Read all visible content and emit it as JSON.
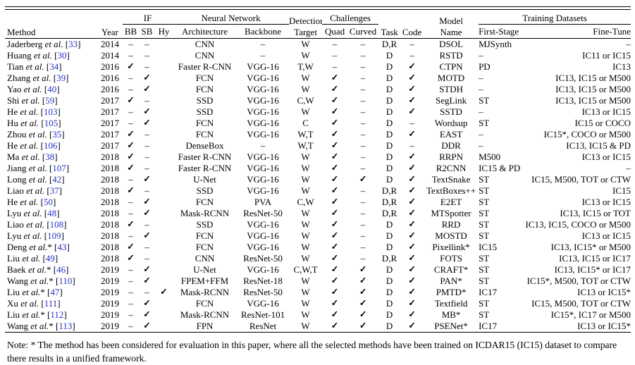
{
  "colors": {
    "citation": "#2533c4",
    "text": "#000000",
    "background": "#ffffff"
  },
  "table": {
    "etal_label": "et al.",
    "header": {
      "method": "Method",
      "year": "Year",
      "if_group": "IF",
      "bb": "BB",
      "sb": "SB",
      "hy": "Hy",
      "nn_group": "Neural Network",
      "architecture": "Architecture",
      "backbone": "Backbone",
      "detection_line1": "Detection",
      "detection_line2": "Target",
      "challenges_group": "Challenges",
      "quad": "Quad",
      "curved": "Curved",
      "task": "Task",
      "code": "Code",
      "model_line1": "Model",
      "model_line2": "Name",
      "training_group": "Training Datasets",
      "first_stage": "First-Stage",
      "fine_tune": "Fine-Tune"
    },
    "symbols": {
      "yes": "✓",
      "no": "–",
      "none": ""
    },
    "rows": [
      {
        "name": "Jaderberg",
        "star": false,
        "cite": "33",
        "year": "2014",
        "bb": "–",
        "sb": "–",
        "hy": "",
        "arch": "CNN",
        "backbone": "–",
        "target": "W",
        "quad": "–",
        "curved": "–",
        "task": "D,R",
        "code": "–",
        "model": "DSOL",
        "first": "MJSynth",
        "fine": "–"
      },
      {
        "name": "Huang",
        "star": false,
        "cite": "30",
        "year": "2014",
        "bb": "–",
        "sb": "–",
        "hy": "",
        "arch": "CNN",
        "backbone": "–",
        "target": "W",
        "quad": "–",
        "curved": "–",
        "task": "D",
        "code": "–",
        "model": "RSTD",
        "first": "–",
        "fine": "IC11 or IC15"
      },
      {
        "name": "Tian",
        "star": false,
        "cite": "34",
        "year": "2016",
        "bb": "✓",
        "sb": "–",
        "hy": "",
        "arch": "Faster R-CNN",
        "backbone": "VGG-16",
        "target": "T,W",
        "quad": "–",
        "curved": "–",
        "task": "D",
        "code": "✓",
        "model": "CTPN",
        "first": "PD",
        "fine": "IC13"
      },
      {
        "name": "Zhang",
        "star": false,
        "cite": "39",
        "year": "2016",
        "bb": "–",
        "sb": "✓",
        "hy": "",
        "arch": "FCN",
        "backbone": "VGG-16",
        "target": "W",
        "quad": "✓",
        "curved": "–",
        "task": "D",
        "code": "✓",
        "model": "MOTD",
        "first": "–",
        "fine": "IC13, IC15 or M500"
      },
      {
        "name": "Yao",
        "star": false,
        "cite": "40",
        "year": "2016",
        "bb": "–",
        "sb": "✓",
        "hy": "",
        "arch": "FCN",
        "backbone": "VGG-16",
        "target": "W",
        "quad": "✓",
        "curved": "–",
        "task": "D",
        "code": "✓",
        "model": "STDH",
        "first": "–",
        "fine": "IC13, IC15 or M500"
      },
      {
        "name": "Shi",
        "star": false,
        "cite": "59",
        "year": "2017",
        "bb": "✓",
        "sb": "–",
        "hy": "",
        "arch": "SSD",
        "backbone": "VGG-16",
        "target": "C,W",
        "quad": "✓",
        "curved": "–",
        "task": "D",
        "code": "✓",
        "model": "SegLink",
        "first": "ST",
        "fine": "IC13, IC15 or M500"
      },
      {
        "name": "He",
        "star": false,
        "cite": "103",
        "year": "2017",
        "bb": "–",
        "sb": "✓",
        "hy": "",
        "arch": "SSD",
        "backbone": "VGG-16",
        "target": "W",
        "quad": "✓",
        "curved": "–",
        "task": "D",
        "code": "✓",
        "model": "SSTD",
        "first": "–",
        "fine": "IC13 or IC15"
      },
      {
        "name": "Hu",
        "star": false,
        "cite": "105",
        "year": "2017",
        "bb": "–",
        "sb": "✓",
        "hy": "",
        "arch": "FCN",
        "backbone": "VGG-16",
        "target": "C",
        "quad": "✓",
        "curved": "–",
        "task": "D",
        "code": "–",
        "model": "Wordsup",
        "first": "ST",
        "fine": "IC15 or COCO"
      },
      {
        "name": "Zhou",
        "star": false,
        "cite": "35",
        "year": "2017",
        "bb": "✓",
        "sb": "–",
        "hy": "",
        "arch": "FCN",
        "backbone": "VGG-16",
        "target": "W,T",
        "quad": "✓",
        "curved": "–",
        "task": "D",
        "code": "✓",
        "model": "EAST",
        "first": "–",
        "fine": "IC15*, COCO or M500"
      },
      {
        "name": "He",
        "star": false,
        "cite": "106",
        "year": "2017",
        "bb": "✓",
        "sb": "–",
        "hy": "",
        "arch": "DenseBox",
        "backbone": "–",
        "target": "W,T",
        "quad": "✓",
        "curved": "–",
        "task": "D",
        "code": "–",
        "model": "DDR",
        "first": "–",
        "fine": "IC13, IC15 & PD"
      },
      {
        "name": "Ma",
        "star": false,
        "cite": "38",
        "year": "2018",
        "bb": "✓",
        "sb": "–",
        "hy": "",
        "arch": "Faster R-CNN",
        "backbone": "VGG-16",
        "target": "W",
        "quad": "✓",
        "curved": "–",
        "task": "D",
        "code": "✓",
        "model": "RRPN",
        "first": "M500",
        "fine": "IC13 or IC15"
      },
      {
        "name": "Jiang",
        "star": false,
        "cite": "107",
        "year": "2018",
        "bb": "✓",
        "sb": "–",
        "hy": "",
        "arch": "Faster R-CNN",
        "backbone": "VGG-16",
        "target": "W",
        "quad": "✓",
        "curved": "–",
        "task": "D",
        "code": "✓",
        "model": "R2CNN",
        "first": "IC15 & PD",
        "fine": "–"
      },
      {
        "name": "Long",
        "star": false,
        "cite": "42",
        "year": "2018",
        "bb": "–",
        "sb": "✓",
        "hy": "",
        "arch": "U-Net",
        "backbone": "VGG-16",
        "target": "W",
        "quad": "✓",
        "curved": "✓",
        "task": "D",
        "code": "✓",
        "model": "TextSnake",
        "first": "ST",
        "fine": "IC15, M500, TOT or CTW"
      },
      {
        "name": "Liao",
        "star": false,
        "cite": "37",
        "year": "2018",
        "bb": "✓",
        "sb": "–",
        "hy": "",
        "arch": "SSD",
        "backbone": "VGG-16",
        "target": "W",
        "quad": "✓",
        "curved": "–",
        "task": "D,R",
        "code": "✓",
        "model": "TextBoxes++",
        "first": "ST",
        "fine": "IC15"
      },
      {
        "name": "He",
        "star": false,
        "cite": "50",
        "year": "2018",
        "bb": "–",
        "sb": "✓",
        "hy": "",
        "arch": "FCN",
        "backbone": "PVA",
        "target": "C,W",
        "quad": "✓",
        "curved": "–",
        "task": "D,R",
        "code": "✓",
        "model": "E2ET",
        "first": "ST",
        "fine": "IC13 or IC15"
      },
      {
        "name": "Lyu",
        "star": false,
        "cite": "48",
        "year": "2018",
        "bb": "–",
        "sb": "✓",
        "hy": "",
        "arch": "Mask-RCNN",
        "backbone": "ResNet-50",
        "target": "W",
        "quad": "✓",
        "curved": "–",
        "task": "D,R",
        "code": "✓",
        "model": "MTSpotter",
        "first": "ST",
        "fine": "IC13, IC15 or TOT"
      },
      {
        "name": "Liao",
        "star": false,
        "cite": "108",
        "year": "2018",
        "bb": "✓",
        "sb": "–",
        "hy": "",
        "arch": "SSD",
        "backbone": "VGG-16",
        "target": "W",
        "quad": "✓",
        "curved": "–",
        "task": "D",
        "code": "✓",
        "model": "RRD",
        "first": "ST",
        "fine": "IC13, IC15, COCO or M500"
      },
      {
        "name": "Lyu",
        "star": false,
        "cite": "109",
        "year": "2018",
        "bb": "–",
        "sb": "✓",
        "hy": "",
        "arch": "FCN",
        "backbone": "VGG-16",
        "target": "W",
        "quad": "✓",
        "curved": "–",
        "task": "D",
        "code": "✓",
        "model": "MOSTD",
        "first": "ST",
        "fine": "IC13 or IC15"
      },
      {
        "name": "Deng",
        "star": true,
        "cite": "43",
        "year": "2018",
        "bb": "✓",
        "sb": "–",
        "hy": "",
        "arch": "FCN",
        "backbone": "VGG-16",
        "target": "W",
        "quad": "✓",
        "curved": "–",
        "task": "D",
        "code": "✓",
        "model": "Pixellink*",
        "first": "IC15",
        "fine": "IC13, IC15* or M500"
      },
      {
        "name": "Liu",
        "star": false,
        "cite": "49",
        "year": "2018",
        "bb": "✓",
        "sb": "–",
        "hy": "",
        "arch": "CNN",
        "backbone": "ResNet-50",
        "target": "W",
        "quad": "✓",
        "curved": "–",
        "task": "D,R",
        "code": "✓",
        "model": "FOTS",
        "first": "ST",
        "fine": "IC13, IC15 or IC17"
      },
      {
        "name": "Baek",
        "star": true,
        "cite": "46",
        "year": "2019",
        "bb": "–",
        "sb": "✓",
        "hy": "",
        "arch": "U-Net",
        "backbone": "VGG-16",
        "target": "C,W,T",
        "quad": "✓",
        "curved": "✓",
        "task": "D",
        "code": "✓",
        "model": "CRAFT*",
        "first": "ST",
        "fine": "IC13, IC15* or IC17"
      },
      {
        "name": "Wang",
        "star": true,
        "cite": "110",
        "year": "2019",
        "bb": "–",
        "sb": "✓",
        "hy": "",
        "arch": "FPEM+FFM",
        "backbone": "ResNet-18",
        "target": "W",
        "quad": "✓",
        "curved": "✓",
        "task": "D",
        "code": "✓",
        "model": "PAN*",
        "first": "ST",
        "fine": "IC15*, M500, TOT or CTW"
      },
      {
        "name": "Liu",
        "star": true,
        "cite": "47",
        "year": "2019",
        "bb": "–",
        "sb": "–",
        "hy": "✓",
        "arch": "Mask-RCNN",
        "backbone": "ResNet-50",
        "target": "W",
        "quad": "✓",
        "curved": "✓",
        "task": "D",
        "code": "✓",
        "model": "PMTD*",
        "first": "IC17",
        "fine": "IC13 or IC15*"
      },
      {
        "name": "Xu",
        "star": false,
        "cite": "111",
        "year": "2019",
        "bb": "–",
        "sb": "✓",
        "hy": "",
        "arch": "FCN",
        "backbone": "VGG-16",
        "target": "W",
        "quad": "✓",
        "curved": "✓",
        "task": "D",
        "code": "✓",
        "model": "Textfield",
        "first": "ST",
        "fine": "IC15, M500, TOT or CTW"
      },
      {
        "name": "Liu",
        "star": true,
        "cite": "112",
        "year": "2019",
        "bb": "–",
        "sb": "✓",
        "hy": "",
        "arch": "Mask-RCNN",
        "backbone": "ResNet-101",
        "target": "W",
        "quad": "✓",
        "curved": "✓",
        "task": "D",
        "code": "✓",
        "model": "MB*",
        "first": "ST",
        "fine": "IC15*, IC17 or M500"
      },
      {
        "name": "Wang",
        "star": true,
        "cite": "113",
        "year": "2019",
        "bb": "–",
        "sb": "✓",
        "hy": "",
        "arch": "FPN",
        "backbone": "ResNet",
        "target": "W",
        "quad": "✓",
        "curved": "✓",
        "task": "D",
        "code": "✓",
        "model": "PSENet*",
        "first": "IC17",
        "fine": "IC13 or IC15*"
      }
    ]
  },
  "note": {
    "text": "Note: * The method has been considered for evaluation in this paper, where all the selected methods have been trained on ICDAR15 (IC15) dataset to compare there results in a unified framework."
  }
}
